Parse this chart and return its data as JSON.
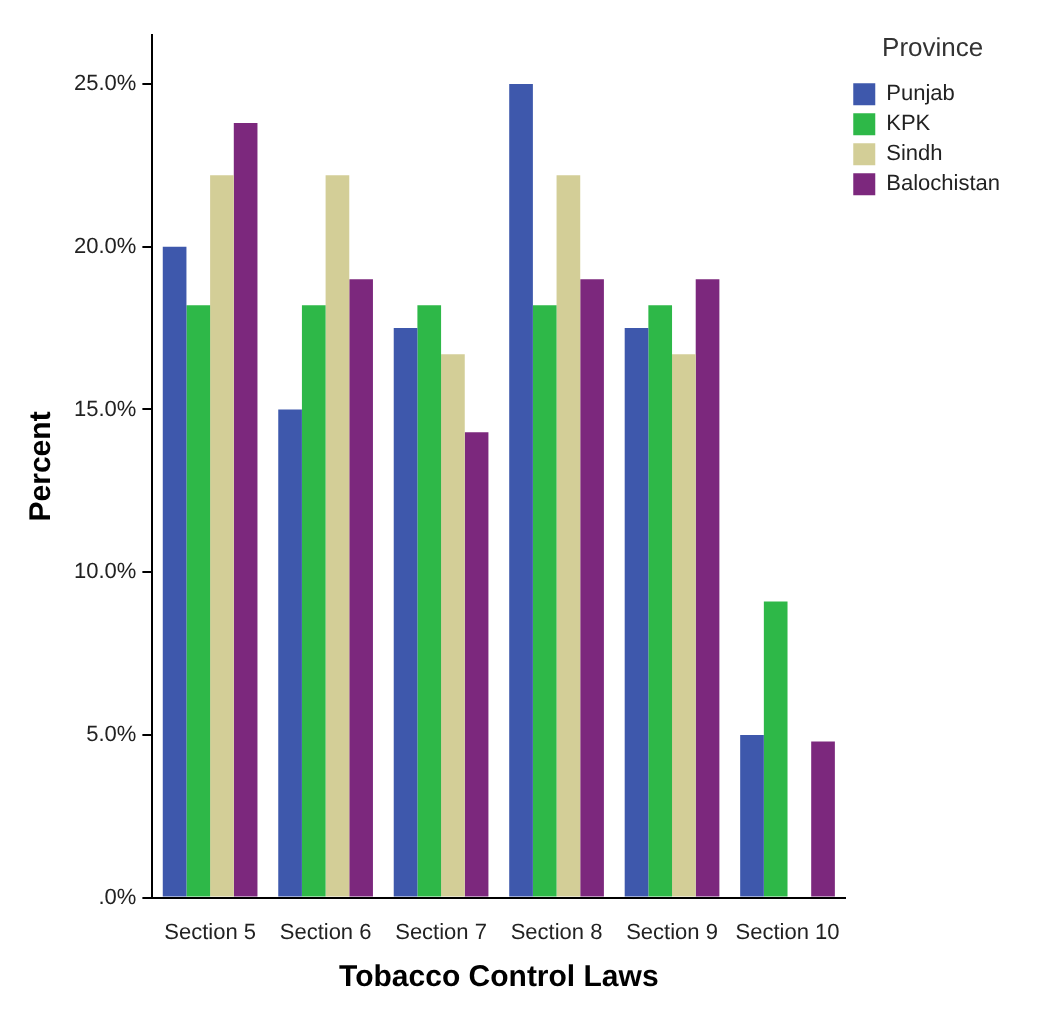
{
  "chart_data": {
    "type": "bar",
    "xlabel": "Tobacco Control Laws",
    "ylabel": "Percent",
    "legend_title": "Province",
    "legend": "top right",
    "grid": false,
    "categories": [
      "Section 5",
      "Section 6",
      "Section 7",
      "Section 8",
      "Section 9",
      "Section 10"
    ],
    "ylim": [
      0,
      26.5
    ],
    "yticks": [
      {
        "value": 0,
        "label": ".0%"
      },
      {
        "value": 5,
        "label": "5.0%"
      },
      {
        "value": 10,
        "label": "10.0%"
      },
      {
        "value": 15,
        "label": "15.0%"
      },
      {
        "value": 20,
        "label": "20.0%"
      },
      {
        "value": 25,
        "label": "25.0%"
      }
    ],
    "series": [
      {
        "name": "Punjab",
        "color": "#3e58ac",
        "values": [
          20,
          15,
          17.5,
          25,
          17.5,
          5
        ]
      },
      {
        "name": "KPK",
        "color": "#2eb848",
        "values": [
          18.2,
          18.2,
          18.2,
          18.2,
          18.2,
          9.1
        ]
      },
      {
        "name": "Sindh",
        "color": "#d3ce97",
        "values": [
          22.2,
          22.2,
          16.7,
          22.2,
          16.7,
          null
        ]
      },
      {
        "name": "Balochistan",
        "color": "#7c287d",
        "values": [
          23.8,
          19.0,
          14.3,
          19.0,
          19.0,
          4.8
        ]
      }
    ]
  }
}
